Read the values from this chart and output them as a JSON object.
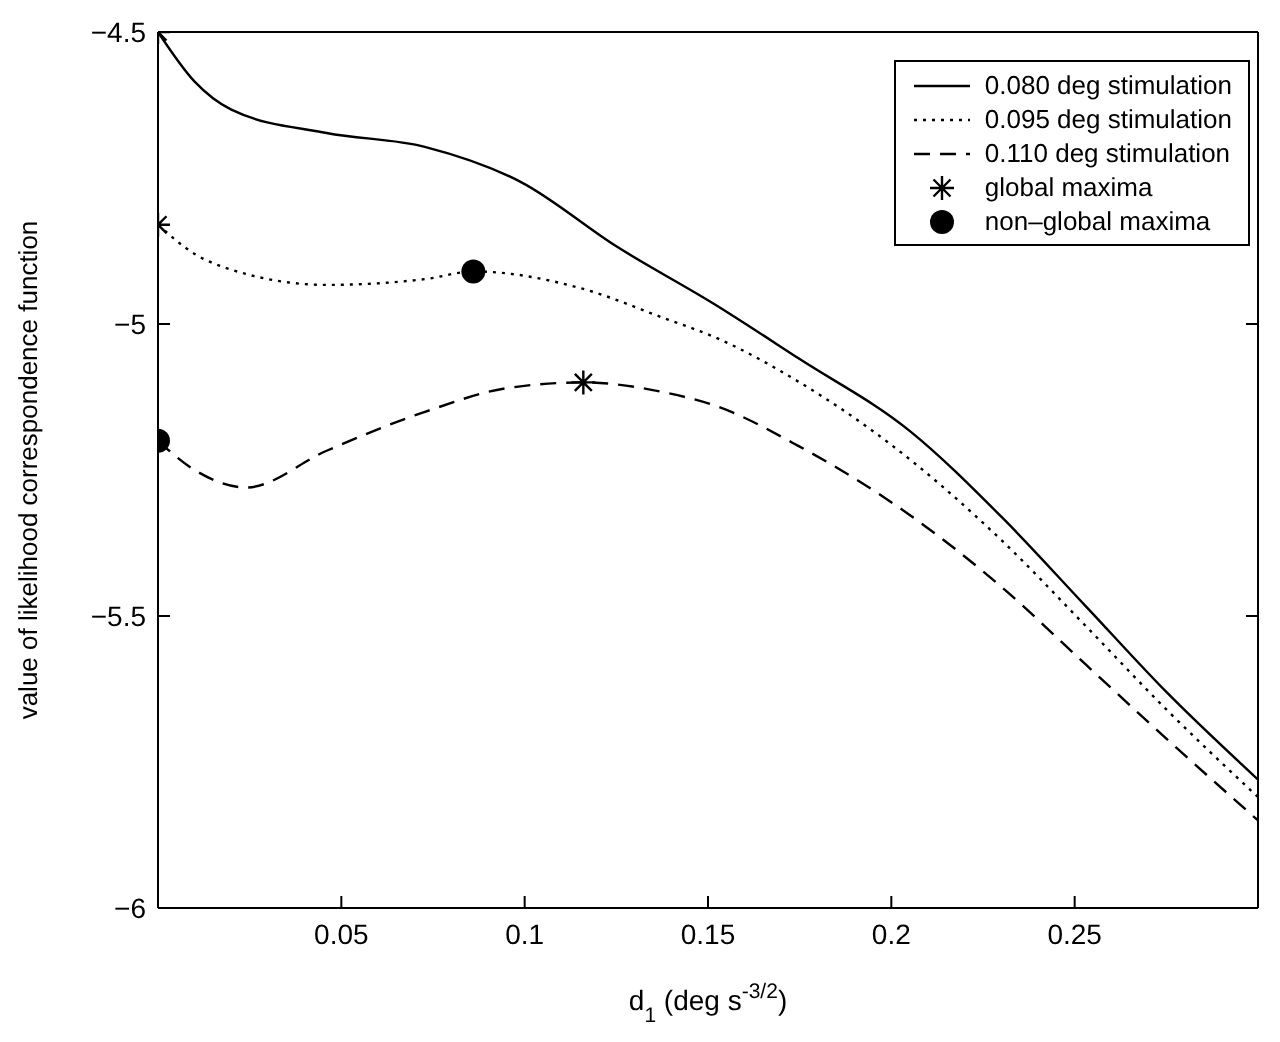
{
  "chart_data": {
    "type": "line",
    "xlabel": "d$_{1}$ (deg s$^{-3/2}$)",
    "ylabel": "value of likelihood correspondence function",
    "xlim": [
      0,
      0.3
    ],
    "ylim": [
      -6,
      -4.5
    ],
    "xticks": [
      0.05,
      0.1,
      0.15,
      0.2,
      0.25
    ],
    "yticks": [
      -6,
      -5.5,
      -5,
      -4.5
    ],
    "legend": "top right",
    "series": [
      {
        "name": "0.080 deg stimulation",
        "color": "#000000",
        "line_style": "solid",
        "marker": "none",
        "x": [
          0,
          0.01,
          0.02,
          0.046,
          0.073,
          0.099,
          0.125,
          0.152,
          0.175,
          0.205,
          0.23,
          0.253,
          0.275,
          0.3
        ],
        "values": [
          -4.5,
          -4.585,
          -4.633,
          -4.673,
          -4.697,
          -4.757,
          -4.867,
          -4.967,
          -5.06,
          -5.183,
          -5.33,
          -5.483,
          -5.63,
          -5.78
        ]
      },
      {
        "name": "0.095 deg stimulation",
        "color": "#000000",
        "line_style": "dotted",
        "marker": "none",
        "x": [
          0,
          0.01,
          0.02,
          0.046,
          0.073,
          0.086,
          0.116,
          0.138,
          0.152,
          0.175,
          0.2,
          0.23,
          0.253,
          0.275,
          0.3
        ],
        "values": [
          -4.83,
          -4.88,
          -4.907,
          -4.933,
          -4.923,
          -4.91,
          -4.94,
          -4.99,
          -5.023,
          -5.1,
          -5.207,
          -5.37,
          -5.517,
          -5.66,
          -5.81
        ]
      },
      {
        "name": "0.110 deg stimulation",
        "color": "#000000",
        "line_style": "dashed",
        "marker": "none",
        "x": [
          0,
          0.01,
          0.024,
          0.046,
          0.073,
          0.095,
          0.116,
          0.138,
          0.152,
          0.175,
          0.205,
          0.23,
          0.253,
          0.275,
          0.3
        ],
        "values": [
          -5.2,
          -5.25,
          -5.28,
          -5.217,
          -5.15,
          -5.11,
          -5.1,
          -5.117,
          -5.14,
          -5.21,
          -5.327,
          -5.45,
          -5.583,
          -5.71,
          -5.85
        ]
      },
      {
        "name": "global maxima",
        "type": "scatter",
        "color": "#000000",
        "marker": "cross",
        "x": [
          0,
          0,
          0.116
        ],
        "values": [
          -4.5,
          -4.83,
          -5.1
        ]
      },
      {
        "name": "non–global maxima",
        "type": "scatter",
        "color": "#000000",
        "marker": "circle",
        "x": [
          0.086,
          0
        ],
        "values": [
          -4.91,
          -5.2
        ]
      }
    ]
  }
}
